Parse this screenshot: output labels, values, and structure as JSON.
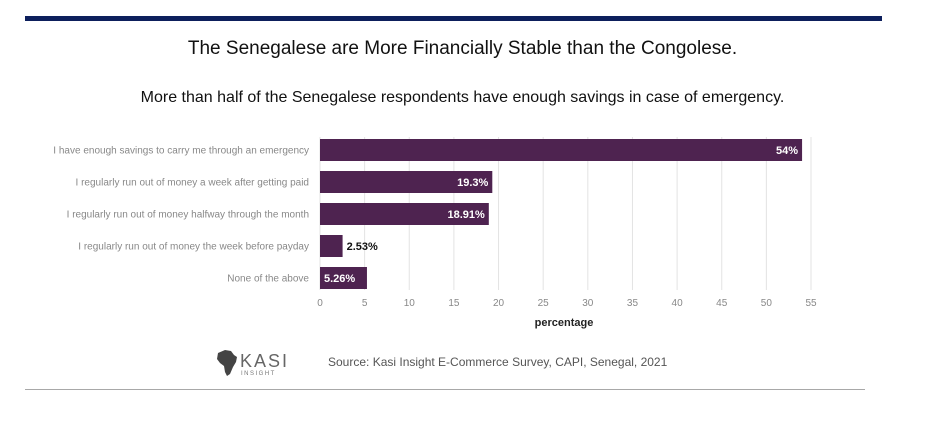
{
  "header": {
    "title": "The Senegalese are More Financially Stable than the Congolese.",
    "subtitle": "More than half of the Senegalese respondents have enough savings in case of emergency."
  },
  "chart_data": {
    "type": "bar",
    "orientation": "horizontal",
    "categories": [
      "I have enough savings to carry me through an emergency",
      "I regularly run out of money a week after getting paid",
      "I regularly run out of money halfway through the month",
      "I regularly run out of money the week before payday",
      "None of the above"
    ],
    "values": [
      54,
      19.3,
      18.91,
      2.53,
      5.26
    ],
    "value_labels": [
      "54%",
      "19.3%",
      "18.91%",
      "2.53%",
      "5.26%"
    ],
    "xlabel": "percentage",
    "ylabel": "",
    "xlim": [
      0,
      55
    ],
    "xticks": [
      0,
      5,
      10,
      15,
      20,
      25,
      30,
      35,
      40,
      45,
      50,
      55
    ],
    "grid": "vertical",
    "bar_color": "#4e2350",
    "label_inside_color": "#ffffff",
    "label_outside_color": "#111111"
  },
  "footer": {
    "logo_text": "KASI",
    "logo_subtext": "INSIGHT",
    "source": "Source: Kasi Insight E-Commerce Survey, CAPI, Senegal, 2021"
  },
  "colors": {
    "top_rule": "#0d1f5c",
    "bar": "#4e2350"
  }
}
